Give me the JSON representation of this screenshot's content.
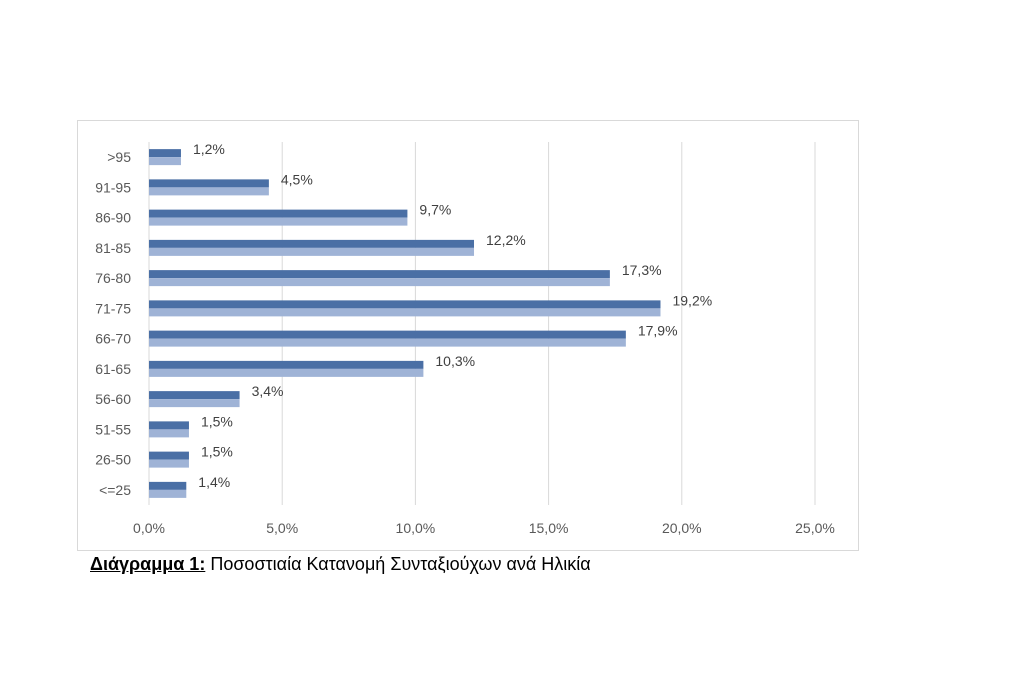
{
  "chart_data": {
    "type": "bar",
    "orientation": "horizontal",
    "categories": [
      ">95",
      "91-95",
      "86-90",
      "81-85",
      "76-80",
      "71-75",
      "66-70",
      "61-65",
      "56-60",
      "51-55",
      "26-50",
      "<=25"
    ],
    "values": [
      1.2,
      4.5,
      9.7,
      12.2,
      17.3,
      19.2,
      17.9,
      10.3,
      3.4,
      1.5,
      1.5,
      1.4
    ],
    "data_labels": [
      "1,2%",
      "4,5%",
      "9,7%",
      "12,2%",
      "17,3%",
      "19,2%",
      "17,9%",
      "10,3%",
      "3,4%",
      "1,5%",
      "1,5%",
      "1,4%"
    ],
    "x_ticks": [
      "0,0%",
      "5,0%",
      "10,0%",
      "15,0%",
      "20,0%",
      "25,0%"
    ],
    "xlim": [
      0,
      25
    ],
    "grid": "vertical",
    "title": "",
    "xlabel": "",
    "ylabel": ""
  },
  "colors": {
    "bar_dark": "#4a6fa5",
    "bar_light": "#9fb3d6",
    "grid": "#d9d9d9",
    "frame": "#d9d9d9"
  },
  "caption": {
    "label": "Διάγραμμα 1:",
    "text": " Ποσοστιαία Κατανομή Συνταξιούχων ανά Ηλικία"
  }
}
